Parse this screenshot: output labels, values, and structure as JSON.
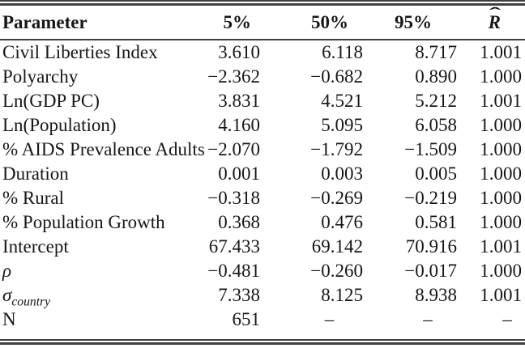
{
  "table": {
    "header": {
      "parameter": "Parameter",
      "col_5": "5%",
      "col_50": "50%",
      "col_95": "95%",
      "rhat_base": "R",
      "rhat_hat": "ˆ"
    },
    "missing_marker": "–",
    "rows": [
      {
        "cells": [
          "Civil Liberties Index",
          "3.610",
          "6.118",
          "8.717",
          "1.001"
        ]
      },
      {
        "cells": [
          "Polyarchy",
          "−2.362",
          "−0.682",
          "0.890",
          "1.000"
        ]
      },
      {
        "cells": [
          "Ln(GDP PC)",
          "3.831",
          "4.521",
          "5.212",
          "1.001"
        ]
      },
      {
        "cells": [
          "Ln(Population)",
          "4.160",
          "5.095",
          "6.058",
          "1.000"
        ]
      },
      {
        "cells": [
          "% AIDS Prevalence Adults",
          "−2.070",
          "−1.792",
          "−1.509",
          "1.000"
        ]
      },
      {
        "cells": [
          "Duration",
          "0.001",
          "0.003",
          "0.005",
          "1.000"
        ]
      },
      {
        "cells": [
          "% Rural",
          "−0.318",
          "−0.269",
          "−0.219",
          "1.000"
        ]
      },
      {
        "cells": [
          "% Population Growth",
          "0.368",
          "0.476",
          "0.581",
          "1.000"
        ]
      },
      {
        "cells": [
          "Intercept",
          "67.433",
          "69.142",
          "70.916",
          "1.001"
        ]
      },
      {
        "cells": [
          "ρ",
          "−0.481",
          "−0.260",
          "−0.017",
          "1.000"
        ],
        "italic": true
      },
      {
        "cells": [
          "σ",
          "7.338",
          "8.125",
          "8.938",
          "1.001"
        ],
        "italic": true,
        "label_sub": "country"
      },
      {
        "cells": [
          "N",
          "651",
          "–",
          "–",
          "–"
        ]
      }
    ],
    "rule_color": "#3f3f3f",
    "text_color": "#161616",
    "background_color": "#ffffff"
  }
}
